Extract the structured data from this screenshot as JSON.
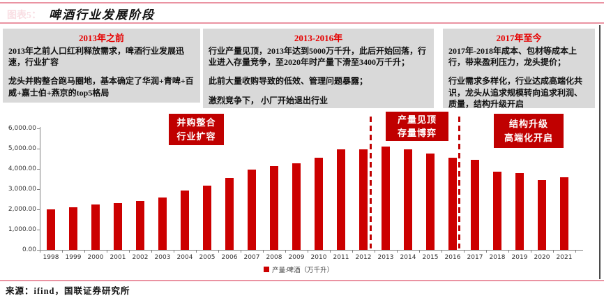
{
  "page": {
    "figure_label": "图表5：",
    "title": "啤酒行业发展阶段",
    "source": "来源：ifind，国联证券研究所"
  },
  "stage_boxes": [
    {
      "header": "2013年之前",
      "paragraphs": [
        "2013年之前人口红利释放需求，啤酒行业发展迅速，行业扩容",
        "龙头并购整合跑马圈地，基本确定了华润+青啤+百威+嘉士伯+燕京的top5格局"
      ]
    },
    {
      "header": "2013-2016年",
      "paragraphs": [
        "行业产量见顶，2013年达到5000万千升，此后开始回落，行业进入存量竞争，至2020年时产量下滑至3400万千升；",
        "此前大量收购导致的低效、管理问题暴露；",
        "激烈竞争下， 小厂开始退出行业"
      ]
    },
    {
      "header": "2017年至今",
      "paragraphs": [
        "2017年-2018年成本、包材等成本上行，带来盈利压力，龙头提价；",
        "行业需求多样化，行业达成高端化共识，龙头从追求规模转向追求利润、质量，结构升级开启"
      ]
    }
  ],
  "annotations": [
    {
      "lines": [
        "并购整合",
        "行业扩容"
      ]
    },
    {
      "lines": [
        "产量见顶",
        "存量博弈"
      ]
    },
    {
      "lines": [
        "结构升级",
        "高端化开启"
      ]
    }
  ],
  "chart_data": {
    "type": "bar",
    "title": "啤酒行业发展阶段",
    "categories": [
      1998,
      1999,
      2000,
      2001,
      2002,
      2003,
      2004,
      2005,
      2006,
      2007,
      2008,
      2009,
      2010,
      2011,
      2012,
      2013,
      2014,
      2015,
      2016,
      2017,
      2018,
      2019,
      2020,
      2021
    ],
    "values": [
      1987.7,
      2088.4,
      2231.3,
      2288.9,
      2402.7,
      2540.5,
      2910.1,
      3126.1,
      3515.2,
      3931.4,
      4103.1,
      4236.4,
      4483.3,
      4898.8,
      4902.0,
      5061.5,
      4921.9,
      4715.7,
      4506.4,
      4401.5,
      3812.2,
      3765.3,
      3411.1,
      3562.4
    ],
    "series_name": "产量:啤酒（万千升）",
    "xlabel": "",
    "ylabel": "",
    "ylim": [
      0,
      6000
    ],
    "y_ticks": [
      "6,000.00",
      "5,000.00",
      "4,000.00",
      "3,000.00",
      "2,000.00",
      "1,000.00",
      "0.00"
    ],
    "grid": false,
    "legend_position": "bottom",
    "bar_color": "#cc0000",
    "divider_years": [
      "2012/2013",
      "2016/2017"
    ]
  },
  "colors": {
    "accent_red": "#c00000",
    "bar_red": "#cc0000",
    "header_red": "#e60000",
    "box_gray": "#d9d9d9",
    "rule_pink": "#ea93a2"
  }
}
